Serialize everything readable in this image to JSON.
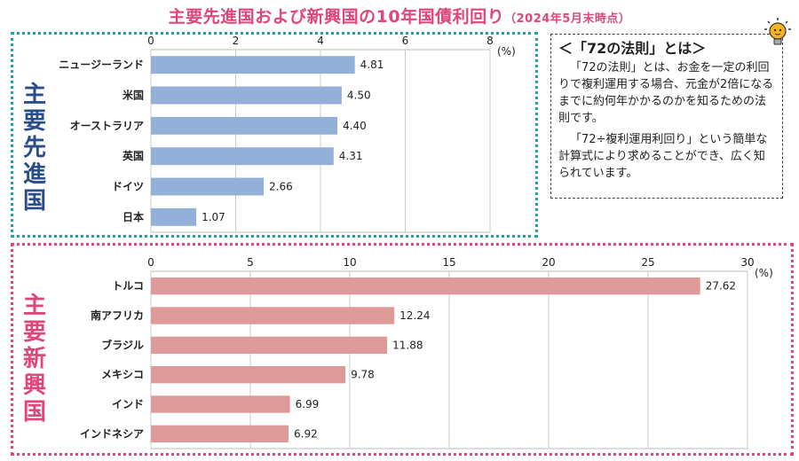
{
  "page": {
    "title": "主要先進国および新興国の10年国債利回り",
    "title_suffix": "（2024年5月末時点）"
  },
  "sections": {
    "developed_label": "主要先進国",
    "emerging_label": "主要新興国"
  },
  "info": {
    "title": "＜「72の法則」とは＞",
    "paragraph1": "「72の法則」とは、お金を一定の利回りで複利運用する場合、元金が2倍になるまでに約何年かかるのかを知るための法則です。",
    "paragraph2": "「72÷複利運用利回り」という簡単な計算式により求めることができ、広く知られています。"
  },
  "icons": {
    "decoration": "lightbulb-icon"
  },
  "colors": {
    "title": "#e0457b",
    "developed_bar": "#93b0d8",
    "emerging_bar": "#dd9a98",
    "developed_border": "#1aa3a8",
    "emerging_border": "#e0457b",
    "developed_label": "#2a4e8c"
  },
  "chart_data": [
    {
      "type": "bar",
      "orientation": "horizontal",
      "categories": [
        "ニュージーランド",
        "米国",
        "オーストラリア",
        "英国",
        "ドイツ",
        "日本"
      ],
      "values": [
        4.81,
        4.5,
        4.4,
        4.31,
        2.66,
        1.07
      ],
      "value_labels": [
        "4.81",
        "4.50",
        "4.40",
        "4.31",
        "2.66",
        "1.07"
      ],
      "xlim": [
        0,
        8
      ],
      "ticks": [
        0,
        2,
        4,
        6,
        8
      ],
      "unit": "(%)",
      "grid": true
    },
    {
      "type": "bar",
      "orientation": "horizontal",
      "categories": [
        "トルコ",
        "南アフリカ",
        "ブラジル",
        "メキシコ",
        "インド",
        "インドネシア"
      ],
      "values": [
        27.62,
        12.24,
        11.88,
        9.78,
        6.99,
        6.92
      ],
      "value_labels": [
        "27.62",
        "12.24",
        "11.88",
        "9.78",
        "6.99",
        "6.92"
      ],
      "xlim": [
        0,
        30
      ],
      "ticks": [
        0,
        5,
        10,
        15,
        20,
        25,
        30
      ],
      "unit": "(%)",
      "grid": true
    }
  ]
}
